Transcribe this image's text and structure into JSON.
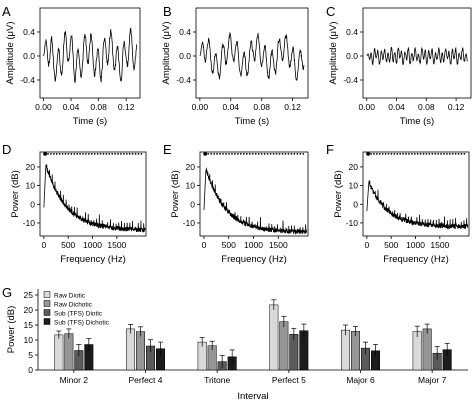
{
  "chart_data": [
    {
      "panel": "A",
      "type": "line",
      "xlabel": "Time (s)",
      "ylabel": "Amplitude (μV)",
      "xlim": [
        -0.005,
        0.14
      ],
      "ylim": [
        -0.7,
        0.8
      ],
      "xticks": [
        0.0,
        0.04,
        0.08,
        0.12
      ],
      "xtick_labels": [
        "0.00",
        "0.04",
        "0.08",
        "0.12"
      ],
      "yticks": [
        -0.4,
        0.0,
        0.4
      ],
      "ytick_labels": [
        "-0.4",
        "0.0",
        "0.4"
      ],
      "signal": {
        "duration": 0.135,
        "f_main": 105,
        "amp_main": 0.28,
        "f_beat": 33,
        "amp_beat": 0.16,
        "noise": 0.08,
        "seed": 11
      }
    },
    {
      "panel": "B",
      "type": "line",
      "xlabel": "Time (s)",
      "ylabel": "Amplitude (μV)",
      "xlim": [
        -0.005,
        0.14
      ],
      "ylim": [
        -0.7,
        0.8
      ],
      "xticks": [
        0.0,
        0.04,
        0.08,
        0.12
      ],
      "xtick_labels": [
        "0.00",
        "0.04",
        "0.08",
        "0.12"
      ],
      "yticks": [
        -0.4,
        0.0,
        0.4
      ],
      "ytick_labels": [
        "-0.4",
        "0.0",
        "0.4"
      ],
      "signal": {
        "duration": 0.135,
        "f_main": 110,
        "amp_main": 0.22,
        "f_beat": 29,
        "amp_beat": 0.16,
        "noise": 0.07,
        "seed": 23
      }
    },
    {
      "panel": "C",
      "type": "line",
      "xlabel": "Time (s)",
      "ylabel": "Amplitude (μV)",
      "xlim": [
        -0.005,
        0.14
      ],
      "ylim": [
        -0.7,
        0.8
      ],
      "xticks": [
        0.0,
        0.04,
        0.08,
        0.12
      ],
      "xtick_labels": [
        "0.00",
        "0.04",
        "0.08",
        "0.12"
      ],
      "yticks": [
        -0.4,
        0.0,
        0.4
      ],
      "ytick_labels": [
        "-0.4",
        "0.0",
        "0.4"
      ],
      "signal": {
        "duration": 0.135,
        "f_main": 220,
        "amp_main": 0.1,
        "f_beat": 95,
        "amp_beat": 0.05,
        "noise": 0.04,
        "seed": 37
      }
    },
    {
      "panel": "D",
      "type": "line",
      "xlabel": "Frequency (Hz)",
      "ylabel": "Power (dB)",
      "xlim": [
        -80,
        2100
      ],
      "ylim": [
        -17,
        28
      ],
      "xticks": [
        0,
        500,
        1000,
        1500
      ],
      "xtick_labels": [
        "0",
        "500",
        "1000",
        "1500"
      ],
      "yticks": [
        -10,
        0,
        10,
        20
      ],
      "ytick_labels": [
        "-10",
        "0",
        "10",
        "20"
      ],
      "spectrum": {
        "peak_db": 21,
        "floor_db": -14,
        "decay_hz": 420,
        "harmonic_spacing_hz": 57,
        "harmonic_height_db": 6,
        "noise_db": 1.3,
        "seed": 5
      },
      "marker_row": {
        "y_db": 27,
        "x_start": 25,
        "x_end": 2060,
        "step_hz": 60
      }
    },
    {
      "panel": "E",
      "type": "line",
      "xlabel": "Frequency (Hz)",
      "ylabel": "Power (dB)",
      "xlim": [
        -80,
        2100
      ],
      "ylim": [
        -17,
        28
      ],
      "xticks": [
        0,
        500,
        1000,
        1500
      ],
      "xtick_labels": [
        "0",
        "500",
        "1000",
        "1500"
      ],
      "yticks": [
        -10,
        0,
        10,
        20
      ],
      "ytick_labels": [
        "-10",
        "0",
        "10",
        "20"
      ],
      "spectrum": {
        "peak_db": 19,
        "floor_db": -15,
        "decay_hz": 400,
        "harmonic_spacing_hz": 57,
        "harmonic_height_db": 5,
        "noise_db": 1.3,
        "seed": 9
      },
      "marker_row": {
        "y_db": 27,
        "x_start": 25,
        "x_end": 2060,
        "step_hz": 60
      }
    },
    {
      "panel": "F",
      "type": "line",
      "xlabel": "Frequency (Hz)",
      "ylabel": "Power (dB)",
      "xlim": [
        -80,
        2100
      ],
      "ylim": [
        -17,
        28
      ],
      "xticks": [
        0,
        500,
        1000,
        1500
      ],
      "xtick_labels": [
        "0",
        "500",
        "1000",
        "1500"
      ],
      "yticks": [
        -10,
        0,
        10,
        20
      ],
      "ytick_labels": [
        "-10",
        "0",
        "10",
        "20"
      ],
      "spectrum": {
        "peak_db": 12,
        "floor_db": -12,
        "decay_hz": 380,
        "harmonic_spacing_hz": 57,
        "harmonic_height_db": 5,
        "noise_db": 1.3,
        "seed": 17
      },
      "marker_row": {
        "y_db": 27,
        "x_start": 25,
        "x_end": 2060,
        "step_hz": 60
      }
    },
    {
      "panel": "G",
      "type": "bar",
      "xlabel": "Interval",
      "ylabel": "Power (dB)",
      "ylim": [
        0,
        27
      ],
      "yticks": [
        0,
        5,
        10,
        15,
        20,
        25
      ],
      "ytick_labels": [
        "0",
        "5",
        "10",
        "15",
        "20",
        "25"
      ],
      "legend_position": "top-left",
      "categories": [
        "Minor 2",
        "Perfect 4",
        "Tritone",
        "Perfect 5",
        "Major 6",
        "Major 7"
      ],
      "series": [
        {
          "name": "Raw Diotic",
          "color": "#d9d9d9",
          "values": [
            11.7,
            13.7,
            9.3,
            21.7,
            13.3,
            12.8
          ],
          "errors": [
            1.3,
            1.5,
            1.5,
            1.7,
            1.7,
            1.8
          ]
        },
        {
          "name": "Raw Dichotic",
          "color": "#969696",
          "values": [
            12.1,
            12.8,
            8.1,
            16.1,
            12.9,
            13.7
          ],
          "errors": [
            1.6,
            1.6,
            1.5,
            1.8,
            1.6,
            1.6
          ]
        },
        {
          "name": "Sub (TFS) Diotic",
          "color": "#5a5a5a",
          "values": [
            6.5,
            8.0,
            2.8,
            11.9,
            7.3,
            5.6
          ],
          "errors": [
            2.0,
            2.1,
            2.1,
            2.0,
            2.0,
            2.2
          ]
        },
        {
          "name": "Sub (TFS) Dichotic",
          "color": "#1c1c1c",
          "values": [
            8.5,
            7.1,
            4.4,
            13.1,
            6.4,
            6.8
          ],
          "errors": [
            2.0,
            2.2,
            2.3,
            2.2,
            2.1,
            2.1
          ]
        }
      ]
    }
  ]
}
